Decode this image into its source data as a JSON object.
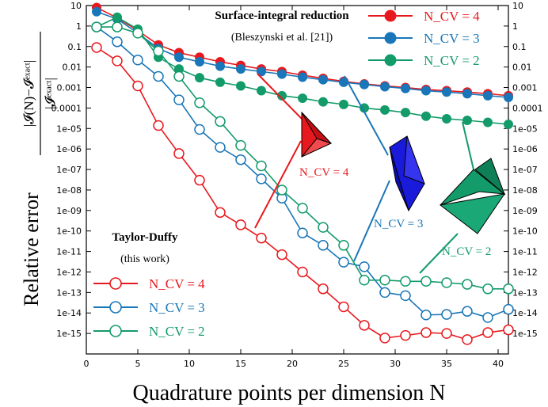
{
  "chart_data": {
    "type": "line",
    "xlabel": "Quadrature points per dimension N",
    "ylabel": "Relative error",
    "ylabel_formula": {
      "numerator": "|𝓘(N)−𝓘ᵉˣᵃᶜᵗ|",
      "denominator": "|𝓘ᵉˣᵃᶜᵗ|"
    },
    "xlim": [
      0,
      41
    ],
    "ylim": [
      1e-16,
      10
    ],
    "yscale": "log",
    "xticks": [
      "0",
      "5",
      "10",
      "15",
      "20",
      "25",
      "30",
      "35",
      "40"
    ],
    "yticks": [
      "10",
      "1",
      "0.1",
      "0.01",
      "0.001",
      "0.0001",
      "1e-05",
      "1e-06",
      "1e-07",
      "1e-08",
      "1e-09",
      "1e-10",
      "1e-11",
      "1e-12",
      "1e-13",
      "1e-14",
      "1e-15"
    ],
    "legends": [
      {
        "title": "Surface-integral reduction",
        "subtitle": "(Bleszynski et al. [21])",
        "placement": "top-right",
        "marker": "filled"
      },
      {
        "title": "Taylor-Duffy",
        "subtitle": "(this work)",
        "placement": "bottom-left",
        "marker": "open"
      }
    ],
    "series": [
      {
        "name": "N_CV = 4",
        "group": "Surface-integral reduction",
        "color": "#e8191e",
        "marker": "filled",
        "x": [
          1,
          3,
          5,
          7,
          9,
          11,
          13,
          15,
          17,
          19,
          21,
          23,
          25,
          27,
          29,
          31,
          33,
          35,
          37,
          39,
          41
        ],
        "y": [
          8,
          2.5,
          0.6,
          0.12,
          0.05,
          0.03,
          0.018,
          0.012,
          0.008,
          0.006,
          0.004,
          0.0028,
          0.002,
          0.0015,
          0.0012,
          0.001,
          0.0008,
          0.0007,
          0.0006,
          0.0005,
          0.0004
        ]
      },
      {
        "name": "N_CV = 3",
        "group": "Surface-integral reduction",
        "color": "#1976b8",
        "marker": "filled",
        "x": [
          1,
          3,
          5,
          7,
          9,
          11,
          13,
          15,
          17,
          19,
          21,
          23,
          25,
          27,
          29,
          31,
          33,
          35,
          37,
          39,
          41
        ],
        "y": [
          5,
          2.2,
          0.45,
          0.08,
          0.03,
          0.018,
          0.011,
          0.008,
          0.006,
          0.0045,
          0.0032,
          0.0024,
          0.0018,
          0.0014,
          0.0011,
          0.0009,
          0.0007,
          0.0006,
          0.0005,
          0.0004,
          0.00033
        ]
      },
      {
        "name": "N_CV = 2",
        "group": "Surface-integral reduction",
        "color": "#139b6a",
        "marker": "filled",
        "x": [
          1,
          3,
          5,
          7,
          9,
          11,
          13,
          15,
          17,
          19,
          21,
          23,
          25,
          27,
          29,
          31,
          33,
          35,
          37,
          39,
          41
        ],
        "y": [
          0.9,
          2.7,
          0.7,
          0.03,
          0.008,
          0.003,
          0.0018,
          0.0012,
          0.0007,
          0.0004,
          0.0003,
          0.0002,
          0.00015,
          0.0001,
          8e-05,
          6e-05,
          4e-05,
          3e-05,
          2.5e-05,
          2e-05,
          1.6e-05
        ]
      },
      {
        "name": "N_CV = 4",
        "group": "Taylor-Duffy",
        "color": "#e8191e",
        "marker": "open",
        "x": [
          1,
          3,
          5,
          7,
          9,
          11,
          13,
          15,
          17,
          19,
          21,
          23,
          25,
          27,
          29,
          31,
          33,
          35,
          37,
          39,
          41
        ],
        "y": [
          0.09,
          0.02,
          0.0012,
          1.4e-05,
          6e-07,
          3e-08,
          8e-10,
          2e-10,
          4.5e-11,
          7e-12,
          1e-12,
          1.5e-13,
          2e-14,
          2.5e-15,
          6e-16,
          8e-16,
          1.1e-15,
          1e-15,
          5e-16,
          1.1e-15,
          1.5e-15
        ]
      },
      {
        "name": "N_CV = 3",
        "group": "Taylor-Duffy",
        "color": "#1976b8",
        "marker": "open",
        "x": [
          1,
          3,
          5,
          7,
          9,
          11,
          13,
          15,
          17,
          19,
          21,
          23,
          25,
          27,
          29,
          31,
          33,
          35,
          37,
          39,
          41
        ],
        "y": [
          0.9,
          0.17,
          0.022,
          0.0035,
          0.00025,
          9e-06,
          1.2e-06,
          3e-07,
          3.5e-08,
          4e-09,
          8e-11,
          2e-11,
          3e-12,
          1.8e-12,
          1e-13,
          7e-14,
          8e-15,
          8.5e-15,
          1.2e-14,
          6e-15,
          1.5e-14
        ]
      },
      {
        "name": "N_CV = 2",
        "group": "Taylor-Duffy",
        "color": "#139b6a",
        "marker": "open",
        "x": [
          1,
          3,
          5,
          7,
          9,
          11,
          13,
          15,
          17,
          19,
          21,
          23,
          25,
          27,
          29,
          31,
          33,
          35,
          37,
          39,
          41
        ],
        "y": [
          0.9,
          0.9,
          0.45,
          0.06,
          0.0035,
          0.00018,
          2.2e-05,
          1.5e-06,
          1.5e-07,
          1e-08,
          1.3e-09,
          1.5e-10,
          2e-11,
          4e-13,
          4e-13,
          3.5e-13,
          3.5e-13,
          3e-13,
          2.5e-13,
          1.5e-13,
          1.5e-13
        ]
      }
    ],
    "annotations": [
      {
        "label": "N_CV = 4",
        "color": "#e8191e",
        "shape": "red-tetrahedron-pair"
      },
      {
        "label": "N_CV = 3",
        "color": "#1976b8",
        "shape": "blue-tetrahedron-pair"
      },
      {
        "label": "N_CV = 2",
        "color": "#139b6a",
        "shape": "green-tetrahedron-pair"
      }
    ]
  }
}
